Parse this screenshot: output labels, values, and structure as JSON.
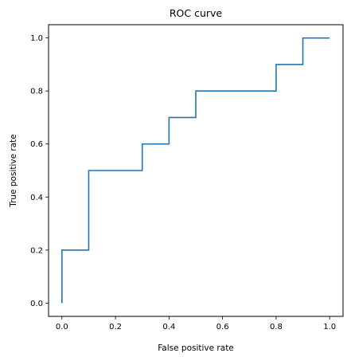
{
  "chart_data": {
    "type": "line",
    "title": "ROC curve",
    "xlabel": "False positive rate",
    "ylabel": "True positive rate",
    "xlim": [
      -0.05,
      1.05
    ],
    "ylim": [
      -0.05,
      1.05
    ],
    "xticks": [
      0.0,
      0.2,
      0.4,
      0.6,
      0.8,
      1.0
    ],
    "yticks": [
      0.0,
      0.2,
      0.4,
      0.6,
      0.8,
      1.0
    ],
    "xtick_labels": [
      "0.0",
      "0.2",
      "0.4",
      "0.6",
      "0.8",
      "1.0"
    ],
    "ytick_labels": [
      "0.0",
      "0.2",
      "0.4",
      "0.6",
      "0.8",
      "1.0"
    ],
    "grid": false,
    "series": [
      {
        "color": "#1f77b4",
        "x": [
          0.0,
          0.0,
          0.1,
          0.1,
          0.3,
          0.3,
          0.4,
          0.4,
          0.5,
          0.5,
          0.8,
          0.8,
          0.9,
          0.9,
          1.0
        ],
        "y": [
          0.0,
          0.2,
          0.2,
          0.5,
          0.5,
          0.6,
          0.6,
          0.7,
          0.7,
          0.8,
          0.8,
          0.9,
          0.9,
          1.0,
          1.0
        ]
      }
    ]
  }
}
